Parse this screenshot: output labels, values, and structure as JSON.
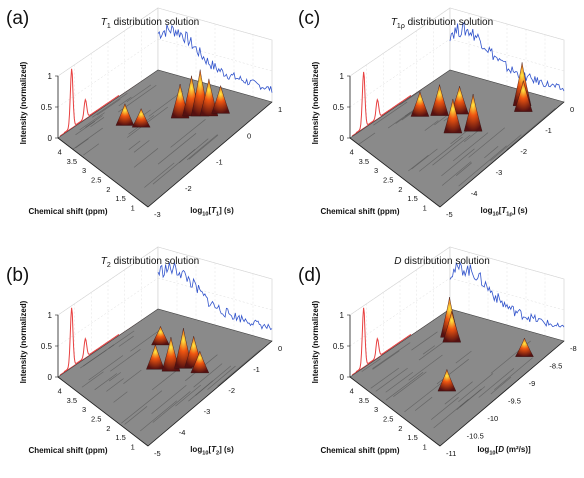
{
  "chart_data": [
    {
      "type": "surface3d",
      "panel_label": "(a)",
      "title_symbol": "T",
      "title_sub": "1",
      "title_rest": " distribution solution",
      "xlabel": "Chemical shift (ppm)",
      "ylabel": "Intensity (normalized)",
      "zlabel_pre": "log",
      "zlabel_base": "10",
      "zlabel_sym": "T",
      "zlabel_sub": "1",
      "zlabel_post": "] (s)",
      "x_ticks": [
        "4",
        "3.5",
        "3",
        "2.5",
        "2",
        "1.5",
        "1"
      ],
      "y_ticks": [
        "0",
        "0.5",
        "1"
      ],
      "z_ticks": [
        "-3",
        "-2",
        "-1",
        "0",
        "1"
      ],
      "peaks": [
        {
          "shift": 3.4,
          "logt": -1.4,
          "h": 0.35
        },
        {
          "shift": 3.0,
          "logt": -1.2,
          "h": 0.3
        },
        {
          "shift": 2.4,
          "logt": -0.4,
          "h": 0.55
        },
        {
          "shift": 2.2,
          "logt": -0.2,
          "h": 0.65
        },
        {
          "shift": 2.0,
          "logt": -0.1,
          "h": 0.75
        },
        {
          "shift": 1.8,
          "logt": 0.0,
          "h": 0.6
        },
        {
          "shift": 1.6,
          "logt": 0.2,
          "h": 0.45
        }
      ],
      "spectrum_peaks": [
        {
          "shift": 3.9,
          "h": 0.95
        },
        {
          "shift": 3.0,
          "h": 0.3
        }
      ],
      "projection_color": "#3355cc"
    },
    {
      "type": "surface3d",
      "panel_label": "(c)",
      "title_symbol": "T",
      "title_sub": "1ρ",
      "title_rest": " distribution solution",
      "xlabel": "Chemical shift (ppm)",
      "ylabel": "Intensity (normalized)",
      "zlabel_pre": "log",
      "zlabel_base": "10",
      "zlabel_sym": "T",
      "zlabel_sub": "1ρ",
      "zlabel_post": "] (s)",
      "x_ticks": [
        "4",
        "3.5",
        "3",
        "2.5",
        "2",
        "1.5",
        "1"
      ],
      "y_ticks": [
        "0",
        "0.5",
        "1"
      ],
      "z_ticks": [
        "-5",
        "-4",
        "-3",
        "-2",
        "-1",
        "0"
      ],
      "peaks": [
        {
          "shift": 3.6,
          "logt": -2.6,
          "h": 0.4
        },
        {
          "shift": 3.2,
          "logt": -2.2,
          "h": 0.5
        },
        {
          "shift": 2.8,
          "logt": -1.8,
          "h": 0.45
        },
        {
          "shift": 2.4,
          "logt": -2.6,
          "h": 0.55
        },
        {
          "shift": 2.0,
          "logt": -2.2,
          "h": 0.6
        },
        {
          "shift": 1.6,
          "logt": -0.6,
          "h": 0.7
        },
        {
          "shift": 1.4,
          "logt": -0.8,
          "h": 0.5
        }
      ],
      "spectrum_peaks": [
        {
          "shift": 3.9,
          "h": 0.9
        },
        {
          "shift": 3.0,
          "h": 0.3
        }
      ],
      "projection_color": "#3355cc"
    },
    {
      "type": "surface3d",
      "panel_label": "(b)",
      "title_symbol": "T",
      "title_sub": "2",
      "title_rest": " distribution solution",
      "xlabel": "Chemical shift (ppm)",
      "ylabel": "Intensity (normalized)",
      "zlabel_pre": "log",
      "zlabel_base": "10",
      "zlabel_sym": "T",
      "zlabel_sub": "2",
      "zlabel_post": "] (s)",
      "x_ticks": [
        "4",
        "3.5",
        "3",
        "2.5",
        "2",
        "1.5",
        "1"
      ],
      "y_ticks": [
        "0",
        "0.5",
        "1"
      ],
      "z_ticks": [
        "-5",
        "-4",
        "-3",
        "-2",
        "-1",
        "0"
      ],
      "peaks": [
        {
          "shift": 3.2,
          "logt": -1.6,
          "h": 0.3
        },
        {
          "shift": 2.6,
          "logt": -2.6,
          "h": 0.4
        },
        {
          "shift": 2.2,
          "logt": -2.4,
          "h": 0.55
        },
        {
          "shift": 2.0,
          "logt": -2.1,
          "h": 0.65
        },
        {
          "shift": 1.8,
          "logt": -1.9,
          "h": 0.5
        },
        {
          "shift": 1.5,
          "logt": -2.0,
          "h": 0.35
        }
      ],
      "spectrum_peaks": [
        {
          "shift": 3.9,
          "h": 0.95
        },
        {
          "shift": 3.0,
          "h": 0.3
        }
      ],
      "projection_color": "#3355cc"
    },
    {
      "type": "surface3d",
      "panel_label": "(d)",
      "title_symbol": "D",
      "title_sub": "",
      "title_rest": " distribution solution",
      "xlabel": "Chemical shift (ppm)",
      "ylabel": "Intensity (normalized)",
      "zlabel_pre": "log",
      "zlabel_base": "10",
      "zlabel_sym": "D",
      "zlabel_sub": "",
      "zlabel_post": " (m²/s)]",
      "x_ticks": [
        "4",
        "3.5",
        "3",
        "2.5",
        "2",
        "1.5",
        "1"
      ],
      "y_ticks": [
        "0",
        "0.5",
        "1"
      ],
      "z_ticks": [
        "-11",
        "-10.5",
        "-10",
        "-9.5",
        "-9",
        "-8.5",
        "-8"
      ],
      "peaks": [
        {
          "shift": 3.5,
          "logt": -8.8,
          "h": 0.65
        },
        {
          "shift": 3.3,
          "logt": -8.9,
          "h": 0.5
        },
        {
          "shift": 2.0,
          "logt": -10.0,
          "h": 0.35
        },
        {
          "shift": 1.2,
          "logt": -8.6,
          "h": 0.3
        }
      ],
      "spectrum_peaks": [
        {
          "shift": 3.9,
          "h": 0.95
        },
        {
          "shift": 3.0,
          "h": 0.3
        }
      ],
      "projection_color": "#3355cc"
    }
  ]
}
